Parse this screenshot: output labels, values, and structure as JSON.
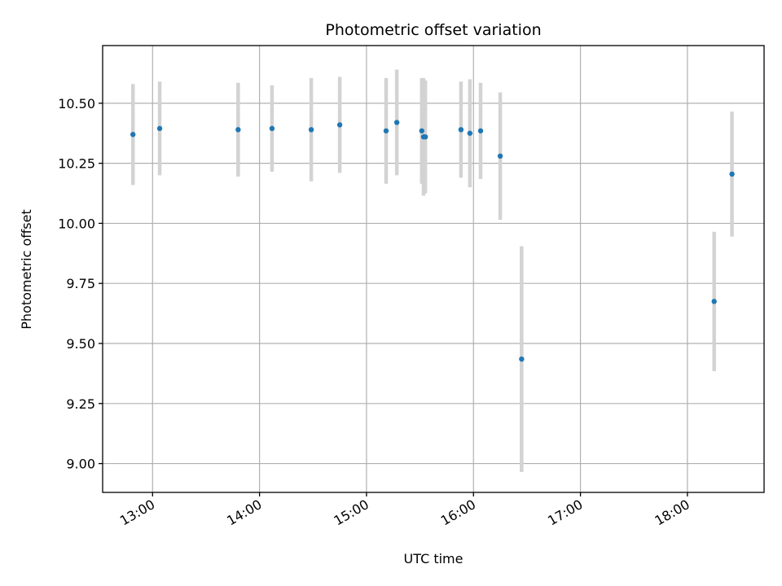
{
  "chart_data": {
    "type": "scatter",
    "title": "Photometric offset variation",
    "xlabel": "UTC time",
    "ylabel": "Photometric offset",
    "x_is_time": true,
    "xlim": [
      "12:32",
      "18:43"
    ],
    "ylim": [
      8.88,
      10.74
    ],
    "x_ticks": [
      "13:00",
      "14:00",
      "15:00",
      "16:00",
      "17:00",
      "18:00"
    ],
    "y_ticks": [
      9.0,
      9.25,
      9.5,
      9.75,
      10.0,
      10.25,
      10.5
    ],
    "y_tick_labels": [
      "9.00",
      "9.25",
      "9.50",
      "9.75",
      "10.00",
      "10.25",
      "10.50"
    ],
    "grid": true,
    "colors": {
      "point": "#1f77b4",
      "errorbar": "#d3d3d3"
    },
    "points": [
      {
        "x": "12:49",
        "y": 10.37,
        "err": 0.21
      },
      {
        "x": "13:04",
        "y": 10.395,
        "err": 0.195
      },
      {
        "x": "13:48",
        "y": 10.39,
        "err": 0.195
      },
      {
        "x": "14:07",
        "y": 10.395,
        "err": 0.18
      },
      {
        "x": "14:29",
        "y": 10.39,
        "err": 0.215
      },
      {
        "x": "14:45",
        "y": 10.41,
        "err": 0.2
      },
      {
        "x": "15:11",
        "y": 10.385,
        "err": 0.22
      },
      {
        "x": "15:17",
        "y": 10.42,
        "err": 0.22
      },
      {
        "x": "15:31",
        "y": 10.385,
        "err": 0.22
      },
      {
        "x": "15:32",
        "y": 10.36,
        "err": 0.245
      },
      {
        "x": "15:33",
        "y": 10.36,
        "err": 0.235
      },
      {
        "x": "15:53",
        "y": 10.39,
        "err": 0.2
      },
      {
        "x": "15:58",
        "y": 10.375,
        "err": 0.225
      },
      {
        "x": "16:04",
        "y": 10.385,
        "err": 0.2
      },
      {
        "x": "16:15",
        "y": 10.28,
        "err": 0.265
      },
      {
        "x": "16:27",
        "y": 9.435,
        "err": 0.47
      },
      {
        "x": "18:15",
        "y": 9.675,
        "err": 0.29
      },
      {
        "x": "18:25",
        "y": 10.205,
        "err": 0.26
      }
    ]
  }
}
